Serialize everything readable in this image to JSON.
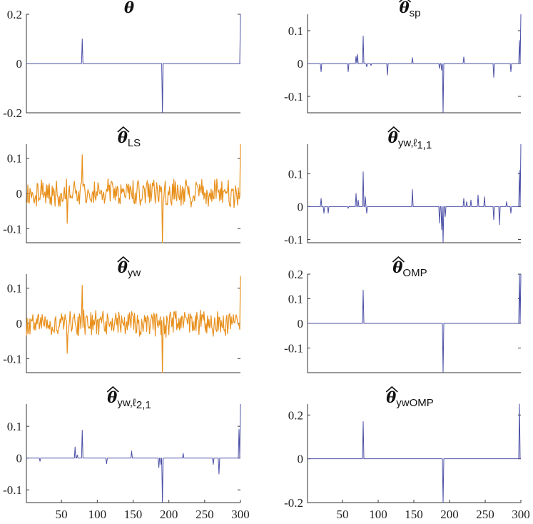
{
  "chart_data": [
    {
      "type": "line",
      "title": "θ",
      "title_sub": "",
      "color": "#4b4fa6",
      "x_range": [
        1,
        300
      ],
      "ylim": [
        -0.2,
        0.2
      ],
      "yticks": [
        0.2,
        0,
        -0.2
      ],
      "ytick_labels": [
        "0.2",
        "0",
        "-0.2"
      ],
      "xticks": [],
      "xtick_labels": [],
      "spikes": [
        [
          79,
          0.1
        ],
        [
          191,
          -0.2
        ],
        [
          300,
          0.2
        ]
      ],
      "noise": false
    },
    {
      "type": "line",
      "title": "θ",
      "title_sub": "sp",
      "color": "#4b4fa6",
      "x_range": [
        1,
        300
      ],
      "ylim": [
        -0.15,
        0.15
      ],
      "yticks": [
        0.1,
        0,
        -0.1
      ],
      "ytick_labels": [
        "0.1",
        "0",
        "-0.1"
      ],
      "xticks": [],
      "xtick_labels": [],
      "spikes": [
        [
          20,
          -0.025
        ],
        [
          58,
          -0.025
        ],
        [
          69,
          0.022
        ],
        [
          71,
          0.028
        ],
        [
          79,
          0.084
        ],
        [
          84,
          -0.01
        ],
        [
          90,
          -0.006
        ],
        [
          113,
          -0.035
        ],
        [
          148,
          0.018
        ],
        [
          186,
          -0.015
        ],
        [
          189,
          -0.02
        ],
        [
          191,
          -0.15
        ],
        [
          220,
          0.02
        ],
        [
          262,
          -0.042
        ],
        [
          286,
          -0.025
        ],
        [
          298,
          0.07
        ],
        [
          300,
          0.15
        ]
      ],
      "noise": false
    },
    {
      "type": "line",
      "title": "θ",
      "title_sub": "LS",
      "color": "#e8901c",
      "x_range": [
        1,
        300
      ],
      "ylim": [
        -0.14,
        0.14
      ],
      "yticks": [
        0.1,
        0,
        -0.1
      ],
      "ytick_labels": [
        "0.1",
        "0",
        "-0.1"
      ],
      "xticks": [],
      "xtick_labels": [],
      "spikes": [
        [
          58,
          -0.085
        ],
        [
          79,
          0.11
        ],
        [
          191,
          -0.18
        ],
        [
          300,
          0.14
        ]
      ],
      "noise": true,
      "noise_amplitude": 0.035
    },
    {
      "type": "line",
      "title": "θ",
      "title_sub": "yw,ℓ",
      "title_sub2": "1,1",
      "color": "#4b4fa6",
      "x_range": [
        1,
        300
      ],
      "ylim": [
        -0.11,
        0.19
      ],
      "yticks": [
        0.1,
        0,
        -0.1
      ],
      "ytick_labels": [
        "0.1",
        "0",
        "-0.1"
      ],
      "xticks": [],
      "xtick_labels": [],
      "spikes": [
        [
          20,
          0.025
        ],
        [
          24,
          -0.02
        ],
        [
          30,
          -0.02
        ],
        [
          58,
          -0.005
        ],
        [
          69,
          0.04
        ],
        [
          72,
          0.02
        ],
        [
          79,
          0.106
        ],
        [
          82,
          0.03
        ],
        [
          84,
          -0.02
        ],
        [
          148,
          0.052
        ],
        [
          186,
          -0.05
        ],
        [
          189,
          -0.07
        ],
        [
          191,
          -0.11
        ],
        [
          194,
          -0.03
        ],
        [
          220,
          0.025
        ],
        [
          224,
          0.015
        ],
        [
          230,
          0.02
        ],
        [
          240,
          0.035
        ],
        [
          249,
          0.03
        ],
        [
          262,
          -0.04
        ],
        [
          270,
          -0.055
        ],
        [
          280,
          0.015
        ],
        [
          286,
          -0.02
        ],
        [
          298,
          0.11
        ],
        [
          300,
          0.19
        ]
      ],
      "noise": false
    },
    {
      "type": "line",
      "title": "θ",
      "title_sub": "yw",
      "color": "#e8901c",
      "x_range": [
        1,
        300
      ],
      "ylim": [
        -0.14,
        0.14
      ],
      "yticks": [
        0.1,
        0,
        -0.1
      ],
      "ytick_labels": [
        "0.1",
        "0",
        "-0.1"
      ],
      "xticks": [],
      "xtick_labels": [],
      "spikes": [
        [
          58,
          -0.085
        ],
        [
          79,
          0.108
        ],
        [
          191,
          -0.18
        ],
        [
          300,
          0.135
        ]
      ],
      "noise": true,
      "noise_amplitude": 0.033
    },
    {
      "type": "line",
      "title": "θ",
      "title_sub": "OMP",
      "color": "#4b4fa6",
      "x_range": [
        1,
        300
      ],
      "ylim": [
        -0.2,
        0.2
      ],
      "yticks": [
        0.2,
        0.1,
        0,
        -0.1
      ],
      "ytick_labels": [
        "0.2",
        "0.1",
        "0",
        "-0.1"
      ],
      "xticks": [],
      "xtick_labels": [],
      "spikes": [
        [
          79,
          0.135
        ],
        [
          191,
          -0.2
        ],
        [
          298,
          0.2
        ],
        [
          300,
          0.2
        ]
      ],
      "noise": false
    },
    {
      "type": "line",
      "title": "θ",
      "title_sub": "yw,ℓ",
      "title_sub2": "2,1",
      "color": "#4b4fa6",
      "x_range": [
        1,
        300
      ],
      "ylim": [
        -0.14,
        0.17
      ],
      "yticks": [
        0.1,
        0,
        -0.1
      ],
      "ytick_labels": [
        "0.1",
        "0",
        "-0.1"
      ],
      "xticks": [
        50,
        100,
        150,
        200,
        250,
        300
      ],
      "xtick_labels": [
        "50",
        "100",
        "150",
        "200",
        "250",
        "300"
      ],
      "spikes": [
        [
          20,
          -0.01
        ],
        [
          69,
          0.035
        ],
        [
          72,
          0.01
        ],
        [
          79,
          0.088
        ],
        [
          113,
          -0.018
        ],
        [
          148,
          0.022
        ],
        [
          186,
          -0.03
        ],
        [
          189,
          -0.02
        ],
        [
          191,
          -0.14
        ],
        [
          220,
          0.015
        ],
        [
          262,
          -0.02
        ],
        [
          270,
          -0.05
        ],
        [
          298,
          0.09
        ],
        [
          300,
          0.17
        ]
      ],
      "noise": false
    },
    {
      "type": "line",
      "title": "θ",
      "title_sub": "ywOMP",
      "color": "#4b4fa6",
      "x_range": [
        1,
        300
      ],
      "ylim": [
        -0.2,
        0.25
      ],
      "yticks": [
        0.2,
        0,
        -0.2
      ],
      "ytick_labels": [
        "0.2",
        "0",
        "-0.2"
      ],
      "xticks": [
        50,
        100,
        150,
        200,
        250,
        300
      ],
      "xtick_labels": [
        "50",
        "100",
        "150",
        "200",
        "250",
        "300"
      ],
      "spikes": [
        [
          79,
          0.17
        ],
        [
          191,
          -0.2
        ],
        [
          298,
          0.25
        ]
      ],
      "noise": false
    }
  ]
}
